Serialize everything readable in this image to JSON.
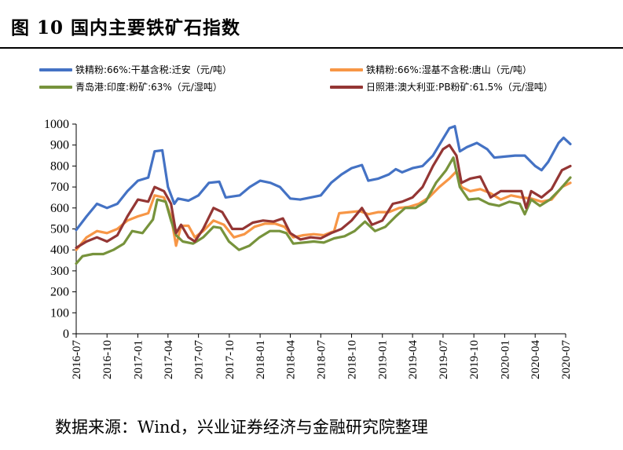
{
  "title": "图 10 国内主要铁矿石指数",
  "source": "数据来源：Wind，兴业证券经济与金融研究院整理",
  "chart_data": {
    "type": "line",
    "ylim": [
      0,
      1000
    ],
    "yticks": [
      0,
      100,
      200,
      300,
      400,
      500,
      600,
      700,
      800,
      900,
      1000
    ],
    "xlim": [
      "2016-07",
      "2020-07"
    ],
    "xticks": [
      "2016-07",
      "2016-10",
      "2017-01",
      "2017-04",
      "2017-07",
      "2017-10",
      "2018-01",
      "2018-04",
      "2018-07",
      "2018-10",
      "2019-01",
      "2019-04",
      "2019-07",
      "2019-10",
      "2020-01",
      "2020-04",
      "2020-07"
    ],
    "legend_position": "top",
    "grid": false,
    "series": [
      {
        "name": "铁精粉:66%:干基含税:迁安（元/吨）",
        "color": "#4472C4",
        "points": [
          [
            "2016-07-01",
            495
          ],
          [
            "2016-08-01",
            560
          ],
          [
            "2016-09-01",
            620
          ],
          [
            "2016-10-01",
            600
          ],
          [
            "2016-11-01",
            620
          ],
          [
            "2016-12-01",
            680
          ],
          [
            "2017-01-01",
            730
          ],
          [
            "2017-02-01",
            745
          ],
          [
            "2017-02-20",
            870
          ],
          [
            "2017-03-15",
            875
          ],
          [
            "2017-04-01",
            700
          ],
          [
            "2017-04-20",
            620
          ],
          [
            "2017-05-01",
            645
          ],
          [
            "2017-06-01",
            635
          ],
          [
            "2017-07-01",
            660
          ],
          [
            "2017-08-01",
            720
          ],
          [
            "2017-09-01",
            725
          ],
          [
            "2017-09-20",
            650
          ],
          [
            "2017-11-01",
            660
          ],
          [
            "2017-12-01",
            700
          ],
          [
            "2018-01-01",
            730
          ],
          [
            "2018-02-01",
            720
          ],
          [
            "2018-03-01",
            700
          ],
          [
            "2018-04-01",
            645
          ],
          [
            "2018-05-01",
            640
          ],
          [
            "2018-06-01",
            650
          ],
          [
            "2018-07-01",
            660
          ],
          [
            "2018-08-01",
            720
          ],
          [
            "2018-09-01",
            760
          ],
          [
            "2018-10-01",
            790
          ],
          [
            "2018-11-01",
            805
          ],
          [
            "2018-11-20",
            730
          ],
          [
            "2018-12-20",
            740
          ],
          [
            "2019-01-20",
            760
          ],
          [
            "2019-02-10",
            785
          ],
          [
            "2019-03-01",
            770
          ],
          [
            "2019-04-01",
            790
          ],
          [
            "2019-05-01",
            800
          ],
          [
            "2019-06-01",
            850
          ],
          [
            "2019-07-01",
            930
          ],
          [
            "2019-07-20",
            980
          ],
          [
            "2019-08-05",
            990
          ],
          [
            "2019-08-20",
            870
          ],
          [
            "2019-09-10",
            890
          ],
          [
            "2019-10-10",
            910
          ],
          [
            "2019-11-10",
            880
          ],
          [
            "2019-12-01",
            840
          ],
          [
            "2020-01-01",
            845
          ],
          [
            "2020-02-01",
            850
          ],
          [
            "2020-03-01",
            850
          ],
          [
            "2020-04-01",
            800
          ],
          [
            "2020-04-20",
            780
          ],
          [
            "2020-05-10",
            820
          ],
          [
            "2020-06-10",
            910
          ],
          [
            "2020-06-25",
            935
          ],
          [
            "2020-07-15",
            905
          ]
        ]
      },
      {
        "name": "铁精粉:66%:湿基不含税:唐山（元/吨）",
        "color": "#F79646",
        "points": [
          [
            "2016-07-01",
            400
          ],
          [
            "2016-08-01",
            460
          ],
          [
            "2016-09-01",
            490
          ],
          [
            "2016-10-01",
            480
          ],
          [
            "2016-11-01",
            500
          ],
          [
            "2016-12-01",
            540
          ],
          [
            "2017-01-01",
            560
          ],
          [
            "2017-02-01",
            575
          ],
          [
            "2017-02-20",
            660
          ],
          [
            "2017-03-20",
            650
          ],
          [
            "2017-04-10",
            560
          ],
          [
            "2017-04-25",
            420
          ],
          [
            "2017-05-10",
            515
          ],
          [
            "2017-06-01",
            515
          ],
          [
            "2017-06-20",
            460
          ],
          [
            "2017-07-15",
            490
          ],
          [
            "2017-08-15",
            540
          ],
          [
            "2017-09-15",
            520
          ],
          [
            "2017-10-15",
            460
          ],
          [
            "2017-11-15",
            475
          ],
          [
            "2017-12-15",
            510
          ],
          [
            "2018-01-15",
            525
          ],
          [
            "2018-02-15",
            525
          ],
          [
            "2018-03-15",
            510
          ],
          [
            "2018-04-10",
            460
          ],
          [
            "2018-05-10",
            470
          ],
          [
            "2018-06-10",
            475
          ],
          [
            "2018-07-10",
            470
          ],
          [
            "2018-08-10",
            490
          ],
          [
            "2018-08-25",
            575
          ],
          [
            "2018-09-25",
            580
          ],
          [
            "2018-10-25",
            585
          ],
          [
            "2018-11-20",
            570
          ],
          [
            "2018-12-20",
            580
          ],
          [
            "2019-01-20",
            580
          ],
          [
            "2019-02-20",
            600
          ],
          [
            "2019-03-20",
            605
          ],
          [
            "2019-04-20",
            620
          ],
          [
            "2019-05-20",
            650
          ],
          [
            "2019-06-20",
            700
          ],
          [
            "2019-07-20",
            740
          ],
          [
            "2019-08-10",
            775
          ],
          [
            "2019-08-25",
            700
          ],
          [
            "2019-09-20",
            680
          ],
          [
            "2019-10-20",
            690
          ],
          [
            "2019-11-20",
            670
          ],
          [
            "2019-12-20",
            640
          ],
          [
            "2020-01-20",
            660
          ],
          [
            "2020-02-20",
            650
          ],
          [
            "2020-03-20",
            645
          ],
          [
            "2020-04-20",
            630
          ],
          [
            "2020-05-20",
            640
          ],
          [
            "2020-06-20",
            700
          ],
          [
            "2020-07-15",
            720
          ]
        ]
      },
      {
        "name": "青岛港:印度:粉矿:63%（元/湿吨）",
        "color": "#77933C",
        "points": [
          [
            "2016-07-01",
            335
          ],
          [
            "2016-07-20",
            370
          ],
          [
            "2016-08-20",
            380
          ],
          [
            "2016-09-20",
            380
          ],
          [
            "2016-10-20",
            400
          ],
          [
            "2016-11-20",
            430
          ],
          [
            "2016-12-15",
            490
          ],
          [
            "2017-01-15",
            480
          ],
          [
            "2017-02-15",
            545
          ],
          [
            "2017-02-28",
            640
          ],
          [
            "2017-03-25",
            630
          ],
          [
            "2017-04-10",
            540
          ],
          [
            "2017-04-25",
            470
          ],
          [
            "2017-05-15",
            440
          ],
          [
            "2017-06-15",
            430
          ],
          [
            "2017-07-15",
            460
          ],
          [
            "2017-08-15",
            510
          ],
          [
            "2017-09-05",
            505
          ],
          [
            "2017-09-30",
            440
          ],
          [
            "2017-10-30",
            400
          ],
          [
            "2017-11-30",
            420
          ],
          [
            "2017-12-30",
            460
          ],
          [
            "2018-01-30",
            490
          ],
          [
            "2018-02-28",
            490
          ],
          [
            "2018-03-20",
            480
          ],
          [
            "2018-04-10",
            430
          ],
          [
            "2018-05-10",
            435
          ],
          [
            "2018-06-10",
            440
          ],
          [
            "2018-07-10",
            435
          ],
          [
            "2018-08-10",
            455
          ],
          [
            "2018-09-10",
            465
          ],
          [
            "2018-10-10",
            490
          ],
          [
            "2018-11-10",
            535
          ],
          [
            "2018-12-10",
            490
          ],
          [
            "2019-01-10",
            510
          ],
          [
            "2019-02-10",
            560
          ],
          [
            "2019-03-10",
            600
          ],
          [
            "2019-04-10",
            600
          ],
          [
            "2019-05-10",
            630
          ],
          [
            "2019-06-10",
            720
          ],
          [
            "2019-07-10",
            780
          ],
          [
            "2019-08-01",
            840
          ],
          [
            "2019-08-20",
            700
          ],
          [
            "2019-09-15",
            640
          ],
          [
            "2019-10-15",
            645
          ],
          [
            "2019-11-15",
            620
          ],
          [
            "2019-12-15",
            610
          ],
          [
            "2020-01-15",
            630
          ],
          [
            "2020-02-15",
            620
          ],
          [
            "2020-03-01",
            570
          ],
          [
            "2020-03-20",
            640
          ],
          [
            "2020-04-15",
            610
          ],
          [
            "2020-05-15",
            640
          ],
          [
            "2020-06-15",
            690
          ],
          [
            "2020-07-15",
            745
          ]
        ]
      },
      {
        "name": "日照港:澳大利亚:PB粉矿:61.5%（元/湿吨）",
        "color": "#943634",
        "points": [
          [
            "2016-07-01",
            410
          ],
          [
            "2016-08-01",
            440
          ],
          [
            "2016-09-01",
            460
          ],
          [
            "2016-10-01",
            440
          ],
          [
            "2016-11-01",
            470
          ],
          [
            "2016-12-01",
            560
          ],
          [
            "2017-01-01",
            640
          ],
          [
            "2017-02-01",
            630
          ],
          [
            "2017-02-20",
            700
          ],
          [
            "2017-03-20",
            680
          ],
          [
            "2017-04-10",
            620
          ],
          [
            "2017-04-25",
            480
          ],
          [
            "2017-05-10",
            520
          ],
          [
            "2017-06-01",
            460
          ],
          [
            "2017-06-20",
            440
          ],
          [
            "2017-07-15",
            500
          ],
          [
            "2017-08-15",
            600
          ],
          [
            "2017-09-10",
            580
          ],
          [
            "2017-10-10",
            500
          ],
          [
            "2017-11-10",
            500
          ],
          [
            "2017-12-10",
            530
          ],
          [
            "2018-01-10",
            540
          ],
          [
            "2018-02-10",
            535
          ],
          [
            "2018-03-10",
            550
          ],
          [
            "2018-04-01",
            480
          ],
          [
            "2018-05-01",
            450
          ],
          [
            "2018-06-01",
            460
          ],
          [
            "2018-07-01",
            455
          ],
          [
            "2018-08-01",
            480
          ],
          [
            "2018-09-01",
            500
          ],
          [
            "2018-10-01",
            540
          ],
          [
            "2018-11-01",
            600
          ],
          [
            "2018-12-01",
            520
          ],
          [
            "2019-01-01",
            540
          ],
          [
            "2019-02-01",
            620
          ],
          [
            "2019-03-01",
            630
          ],
          [
            "2019-04-01",
            650
          ],
          [
            "2019-05-01",
            700
          ],
          [
            "2019-06-01",
            800
          ],
          [
            "2019-07-01",
            880
          ],
          [
            "2019-07-20",
            900
          ],
          [
            "2019-08-10",
            850
          ],
          [
            "2019-08-25",
            720
          ],
          [
            "2019-09-20",
            740
          ],
          [
            "2019-10-20",
            750
          ],
          [
            "2019-11-20",
            650
          ],
          [
            "2019-12-20",
            680
          ],
          [
            "2020-01-20",
            680
          ],
          [
            "2020-02-20",
            680
          ],
          [
            "2020-03-05",
            600
          ],
          [
            "2020-03-20",
            680
          ],
          [
            "2020-04-20",
            650
          ],
          [
            "2020-05-20",
            690
          ],
          [
            "2020-06-20",
            780
          ],
          [
            "2020-07-15",
            800
          ]
        ]
      }
    ]
  }
}
